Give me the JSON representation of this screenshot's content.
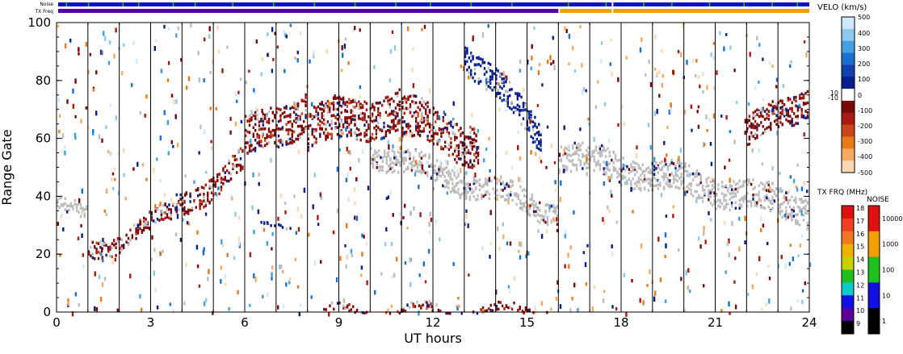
{
  "chart_data": {
    "type": "heatmap",
    "title": "",
    "xlabel": "UT hours",
    "ylabel": "Range Gate",
    "xlim": [
      0,
      24
    ],
    "ylim": [
      0,
      100
    ],
    "x_ticks": [
      0,
      3,
      6,
      9,
      12,
      15,
      18,
      21,
      24
    ],
    "y_ticks": [
      0,
      20,
      40,
      60,
      80,
      100
    ],
    "x_tick_labels": [
      "0",
      "3",
      "6",
      "9",
      "12",
      "15",
      "18",
      "21",
      "24"
    ],
    "y_tick_labels": [
      "0",
      "20",
      "40",
      "60",
      "80",
      "100"
    ],
    "scan_boundaries_ut": [
      1,
      2,
      3,
      4,
      5,
      6,
      7,
      8,
      9,
      10,
      11,
      12,
      13,
      14,
      15,
      16,
      17,
      18,
      19,
      20,
      21,
      22,
      23
    ],
    "top_strips": {
      "noise_label": "Noise",
      "txfreq_label": "TX Freq",
      "noise_color": "#1010d0",
      "noise_spike_color": "#20c020",
      "noise_spikes_ut": [
        0.3,
        1.0,
        2.1,
        2.6,
        3.7,
        4.4,
        5.6,
        6.9,
        8.2,
        9.5,
        10.8,
        11.9,
        13.2,
        14.5,
        16.3,
        17.5,
        18.7,
        19.6,
        20.8,
        21.9,
        22.8,
        23.6
      ],
      "txfreq_segments": [
        {
          "start_ut": 0.0,
          "end_ut": 16.0,
          "color": "#5a009a"
        },
        {
          "start_ut": 16.0,
          "end_ut": 17.7,
          "color": "#f0a000"
        },
        {
          "start_ut": 17.7,
          "end_ut": 24.0,
          "color": "#f0a000"
        }
      ],
      "noise_gaps_ut": [
        17.7
      ]
    },
    "features": [
      {
        "kind": "ground_scatter",
        "start_ut": 0.0,
        "end_ut": 1.0,
        "gate_from": 38,
        "gate_to": 33,
        "width": 5
      },
      {
        "kind": "ionospheric",
        "start_ut": 1.0,
        "end_ut": 2.2,
        "gate_from": 20,
        "gate_to": 26,
        "width": 6
      },
      {
        "kind": "ionospheric",
        "start_ut": 2.2,
        "end_ut": 3.8,
        "gate_from": 28,
        "gate_to": 34,
        "width": 6
      },
      {
        "kind": "ionospheric",
        "start_ut": 3.8,
        "end_ut": 6.0,
        "gate_from": 36,
        "gate_to": 52,
        "width": 8
      },
      {
        "kind": "ionospheric",
        "start_ut": 6.0,
        "end_ut": 8.0,
        "gate_from": 60,
        "gate_to": 70,
        "width": 14
      },
      {
        "kind": "ionospheric",
        "start_ut": 8.0,
        "end_ut": 11.0,
        "gate_from": 64,
        "gate_to": 70,
        "width": 14
      },
      {
        "kind": "ionospheric",
        "start_ut": 11.0,
        "end_ut": 13.5,
        "gate_from": 68,
        "gate_to": 58,
        "width": 14
      },
      {
        "kind": "ground_scatter",
        "start_ut": 10.0,
        "end_ut": 16.0,
        "gate_from": 56,
        "gate_to": 35,
        "width": 8
      },
      {
        "kind": "approaching",
        "start_ut": 13.0,
        "end_ut": 15.5,
        "gate_from": 90,
        "gate_to": 62,
        "width": 10
      },
      {
        "kind": "ground_scatter",
        "start_ut": 16.0,
        "end_ut": 24.0,
        "gate_from": 55,
        "gate_to": 36,
        "width": 10
      },
      {
        "kind": "ionospheric",
        "start_ut": 22.0,
        "end_ut": 24.0,
        "gate_from": 62,
        "gate_to": 74,
        "width": 10
      },
      {
        "kind": "ionospheric",
        "start_ut": 8.5,
        "end_ut": 16.0,
        "gate_from": 1,
        "gate_to": 1,
        "width": 3
      },
      {
        "kind": "approaching",
        "start_ut": 6.5,
        "end_ut": 7.5,
        "gate_from": 31,
        "gate_to": 31,
        "width": 2
      }
    ],
    "velocity_colorbar": {
      "title": "VELO (km/s)",
      "ticks": [
        "500",
        "400",
        "300",
        "200",
        "100",
        "10",
        "0",
        "-10",
        "-100",
        "-200",
        "-300",
        "-400",
        "-500"
      ],
      "colors_top_to_bottom": [
        "#cfe8ff",
        "#8cc8f0",
        "#40a0e0",
        "#1a70d0",
        "#1040b0",
        "#0a1e8a",
        "#ffffff",
        "#7a0a0a",
        "#a81a12",
        "#c8461a",
        "#e87a1a",
        "#f5aa60",
        "#fbd8b0"
      ]
    },
    "txfreq_colorbar": {
      "title": "TX FRQ (MHz)",
      "ticks": [
        "18",
        "17",
        "16",
        "15",
        "14",
        "13",
        "12",
        "11",
        "10",
        "9"
      ],
      "colors_top_to_bottom": [
        "#e01010",
        "#f04020",
        "#f07820",
        "#f0b000",
        "#c8d000",
        "#20c020",
        "#10c8c8",
        "#1010e0",
        "#5a009a",
        "#000000"
      ]
    },
    "noise_colorbar": {
      "title": "NOISE",
      "ticks": [
        "10000",
        "1000",
        "100",
        "10",
        "1"
      ],
      "colors_top_to_bottom": [
        "#e01010",
        "#f0a000",
        "#20c020",
        "#1010e0",
        "#000000"
      ]
    }
  },
  "colors": {
    "ground_scatter": "#bdbdbd",
    "receding_dark": "#7a0a0a",
    "approaching_dark": "#0a1e8a",
    "axis": "#000000"
  }
}
